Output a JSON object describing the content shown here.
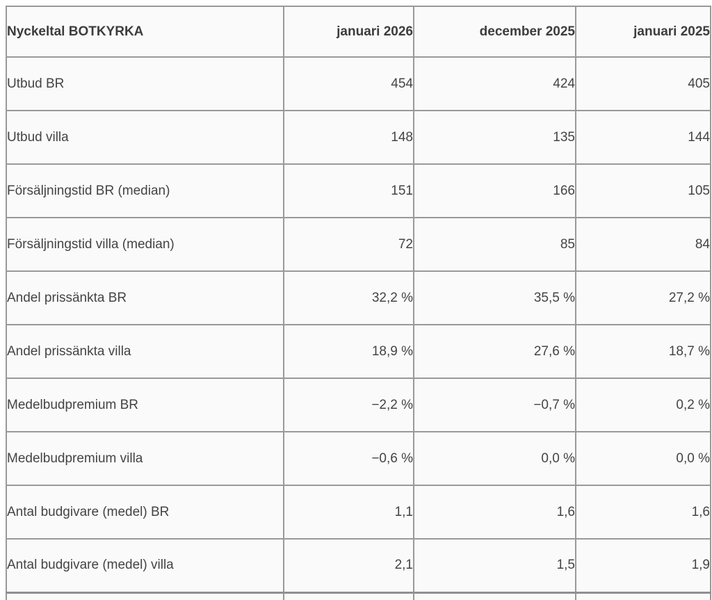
{
  "colors": {
    "border": "#999999",
    "text": "#444444",
    "header_text": "#3d3d3d",
    "cell_background": "#fafafa",
    "page_background": "#ffffff"
  },
  "chart_data": {
    "type": "table",
    "title": "Nyckeltal BOTKYRKA",
    "columns": [
      "januari 2026",
      "december 2025",
      "januari 2025"
    ],
    "rows": [
      {
        "label": "Utbud BR",
        "values": [
          "454",
          "424",
          "405"
        ]
      },
      {
        "label": "Utbud villa",
        "values": [
          "148",
          "135",
          "144"
        ]
      },
      {
        "label": "Försäljningstid BR (median)",
        "values": [
          "151",
          "166",
          "105"
        ]
      },
      {
        "label": "Försäljningstid villa (median)",
        "values": [
          "72",
          "85",
          "84"
        ]
      },
      {
        "label": "Andel prissänkta BR",
        "values": [
          "32,2 %",
          "35,5 %",
          "27,2 %"
        ]
      },
      {
        "label": "Andel prissänkta villa",
        "values": [
          "18,9 %",
          "27,6 %",
          "18,7 %"
        ]
      },
      {
        "label": "Medelbudpremium BR",
        "values": [
          "−2,2 %",
          "−0,7 %",
          "0,2 %"
        ]
      },
      {
        "label": "Medelbudpremium villa",
        "values": [
          "−0,6 %",
          "0,0 %",
          "0,0 %"
        ]
      },
      {
        "label": "Antal budgivare (medel) BR",
        "values": [
          "1,1",
          "1,6",
          "1,6"
        ]
      },
      {
        "label": "Antal budgivare (medel) villa",
        "values": [
          "2,1",
          "1,5",
          "1,9"
        ]
      }
    ]
  }
}
